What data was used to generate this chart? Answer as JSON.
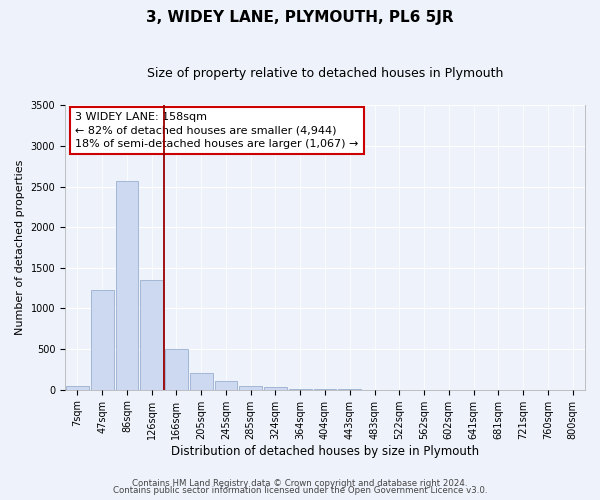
{
  "title": "3, WIDEY LANE, PLYMOUTH, PL6 5JR",
  "subtitle": "Size of property relative to detached houses in Plymouth",
  "xlabel": "Distribution of detached houses by size in Plymouth",
  "ylabel": "Number of detached properties",
  "bar_labels": [
    "7sqm",
    "47sqm",
    "86sqm",
    "126sqm",
    "166sqm",
    "205sqm",
    "245sqm",
    "285sqm",
    "324sqm",
    "364sqm",
    "404sqm",
    "443sqm",
    "483sqm",
    "522sqm",
    "562sqm",
    "602sqm",
    "641sqm",
    "681sqm",
    "721sqm",
    "760sqm",
    "800sqm"
  ],
  "bar_values": [
    50,
    1230,
    2570,
    1350,
    500,
    200,
    110,
    50,
    30,
    15,
    5,
    3,
    2,
    0,
    0,
    0,
    0,
    0,
    0,
    0,
    0
  ],
  "bar_color": "#ccd9f0",
  "bar_edgecolor": "#9ab0d0",
  "ylim": [
    0,
    3500
  ],
  "yticks": [
    0,
    500,
    1000,
    1500,
    2000,
    2500,
    3000,
    3500
  ],
  "vline_x_index": 4,
  "vline_color": "#990000",
  "annotation_title": "3 WIDEY LANE: 158sqm",
  "annotation_line1": "← 82% of detached houses are smaller (4,944)",
  "annotation_line2": "18% of semi-detached houses are larger (1,067) →",
  "annotation_box_facecolor": "#ffffff",
  "annotation_box_edgecolor": "#cc0000",
  "footer1": "Contains HM Land Registry data © Crown copyright and database right 2024.",
  "footer2": "Contains public sector information licensed under the Open Government Licence v3.0.",
  "fig_facecolor": "#eef2fa",
  "ax_facecolor": "#eef2fa",
  "grid_color": "#ffffff",
  "title_fontsize": 11,
  "subtitle_fontsize": 9,
  "ylabel_fontsize": 8,
  "xlabel_fontsize": 8.5,
  "tick_fontsize": 7,
  "annot_fontsize": 8,
  "footer_fontsize": 6.2
}
